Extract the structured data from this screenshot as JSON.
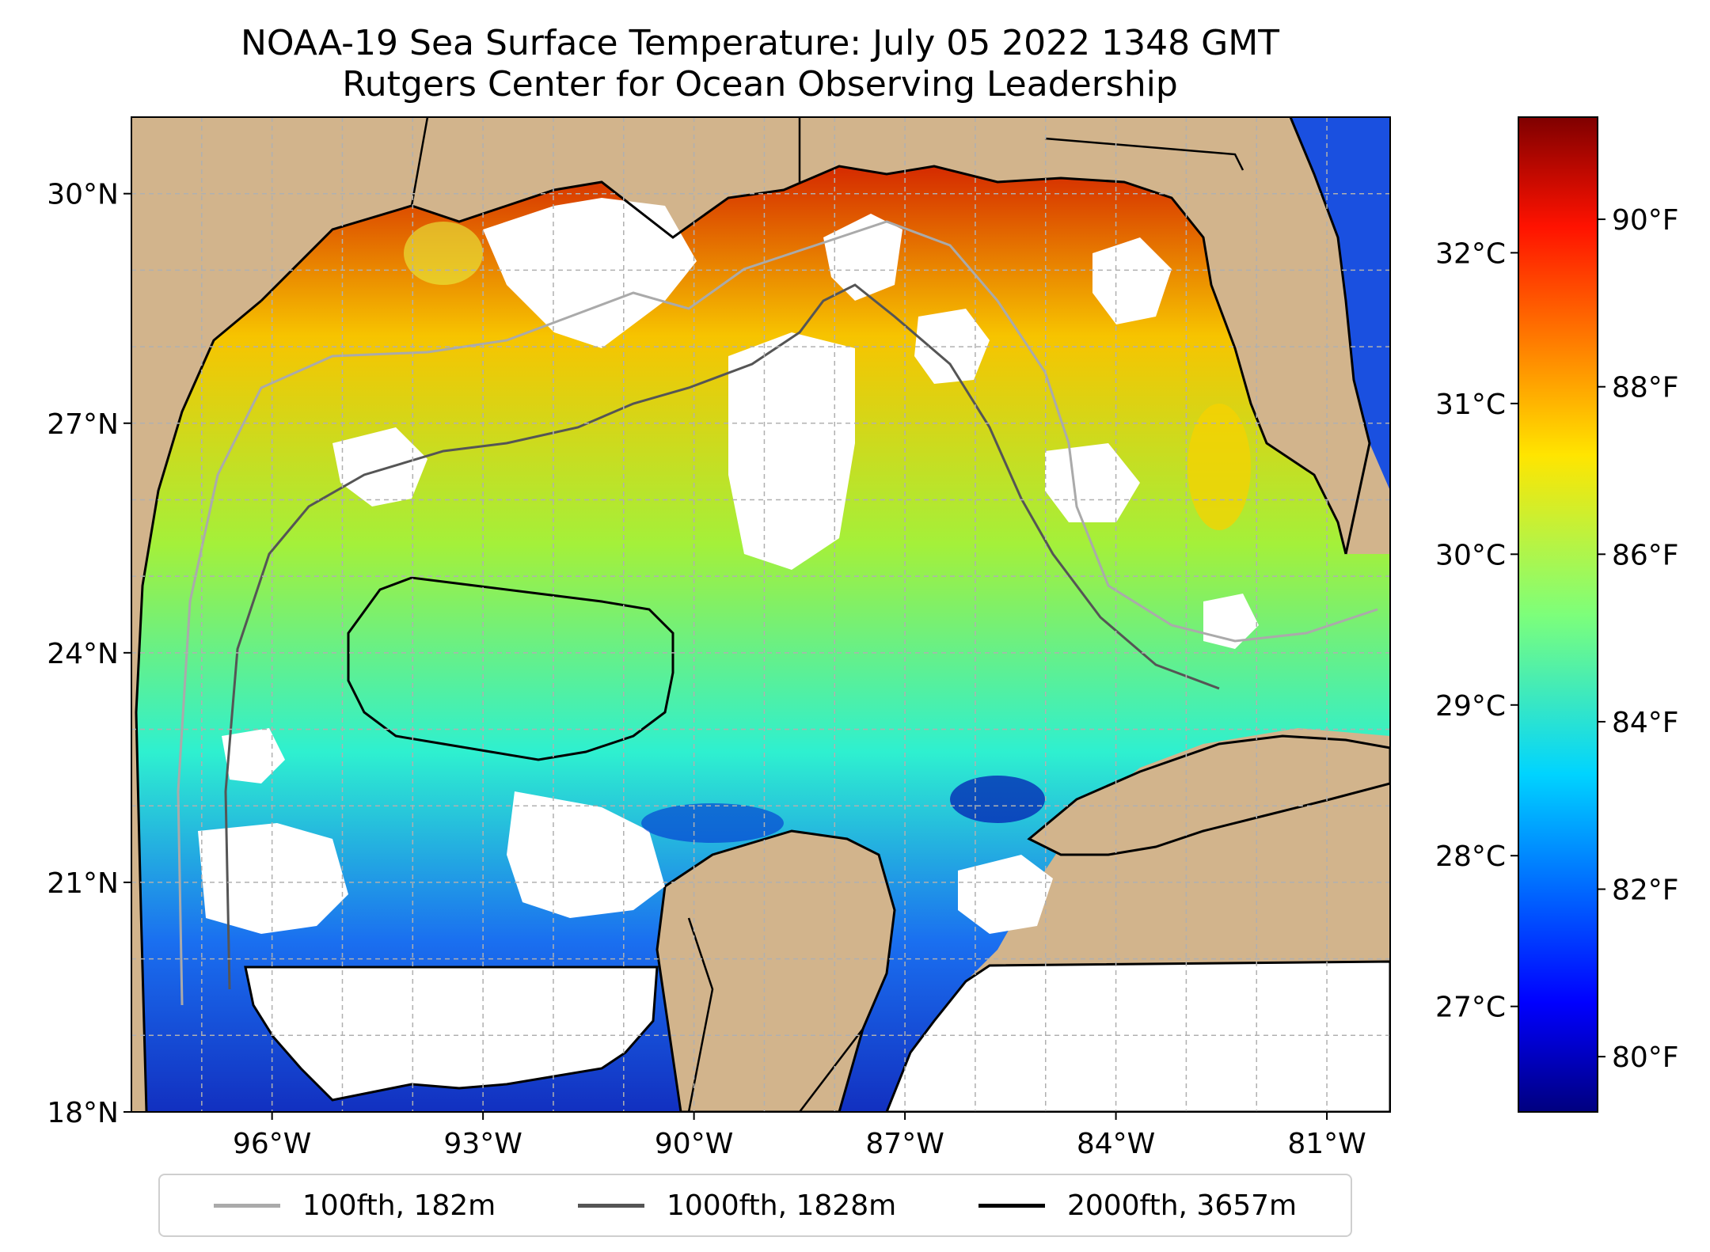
{
  "title": {
    "line1": "NOAA-19 Sea Surface Temperature: July 05 2022 1348 GMT",
    "line2": "Rutgers Center for Ocean Observing Leadership"
  },
  "map": {
    "lat_range": [
      18,
      31
    ],
    "lon_range": [
      -98,
      -80.1
    ],
    "lat_ticks": [
      {
        "value": 18,
        "label": "18°N"
      },
      {
        "value": 21,
        "label": "21°N"
      },
      {
        "value": 24,
        "label": "24°N"
      },
      {
        "value": 27,
        "label": "27°N"
      },
      {
        "value": 30,
        "label": "30°N"
      }
    ],
    "lon_ticks": [
      {
        "value": -96,
        "label": "96°W"
      },
      {
        "value": -93,
        "label": "93°W"
      },
      {
        "value": -90,
        "label": "90°W"
      },
      {
        "value": -87,
        "label": "87°W"
      },
      {
        "value": -84,
        "label": "84°W"
      },
      {
        "value": -81,
        "label": "81°W"
      }
    ],
    "colors": {
      "land": "#d2b48c",
      "no_data": "#ffffff",
      "contour_100fth": "#aaaaaa",
      "contour_1000fth": "#555555",
      "contour_2000fth": "#000000",
      "gridline": "#b0b0b0"
    }
  },
  "colorbar": {
    "colormap": "jet",
    "celsius_range": [
      26.3,
      32.9
    ],
    "celsius_ticks": [
      {
        "value": 27,
        "label": "27°C"
      },
      {
        "value": 28,
        "label": "28°C"
      },
      {
        "value": 29,
        "label": "29°C"
      },
      {
        "value": 30,
        "label": "30°C"
      },
      {
        "value": 31,
        "label": "31°C"
      },
      {
        "value": 32,
        "label": "32°C"
      }
    ],
    "fahrenheit_ticks": [
      {
        "value": 80,
        "label": "80°F"
      },
      {
        "value": 82,
        "label": "82°F"
      },
      {
        "value": 84,
        "label": "84°F"
      },
      {
        "value": 86,
        "label": "86°F"
      },
      {
        "value": 88,
        "label": "88°F"
      },
      {
        "value": 90,
        "label": "90°F"
      }
    ]
  },
  "legend": {
    "items": [
      {
        "label": "100fth, 182m",
        "color": "#aaaaaa"
      },
      {
        "label": "1000fth, 1828m",
        "color": "#555555"
      },
      {
        "label": "2000fth, 3657m",
        "color": "#000000"
      }
    ]
  }
}
